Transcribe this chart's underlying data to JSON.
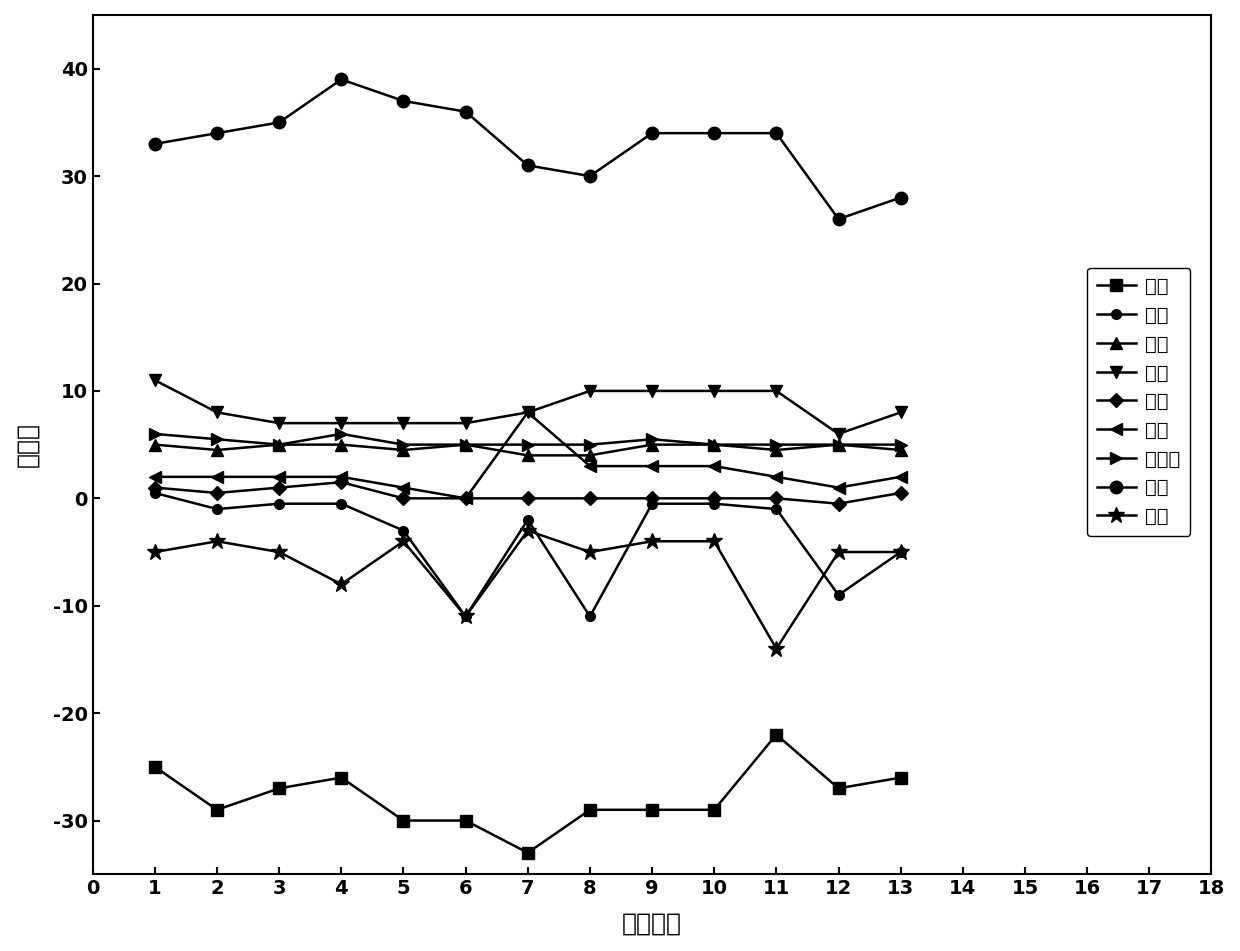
{
  "x": [
    1,
    2,
    3,
    4,
    5,
    6,
    7,
    8,
    9,
    10,
    11,
    12,
    13
  ],
  "refined_data": {
    "酸味": [
      -25,
      -29,
      -27,
      -26,
      -30,
      -30,
      -33,
      -29,
      -29,
      -29,
      -22,
      -27,
      -26
    ],
    "苦味": [
      0.5,
      -1,
      -0.5,
      -0.5,
      -3,
      -11,
      -2,
      -11,
      -0.5,
      -0.5,
      -1,
      -9,
      -5
    ],
    "涩味": [
      5,
      4.5,
      5,
      5,
      4.5,
      5,
      4,
      4,
      5,
      5,
      4.5,
      5,
      4.5
    ],
    "苦回": [
      11,
      8,
      7,
      7,
      7,
      7,
      8,
      10,
      10,
      10,
      10,
      6,
      8
    ],
    "涩回": [
      1,
      0.5,
      1,
      1.5,
      0,
      0,
      0,
      0,
      0,
      0,
      0,
      -0.5,
      0.5
    ],
    "鲜味": [
      2,
      2,
      2,
      2,
      1,
      0,
      8,
      3,
      3,
      3,
      2,
      1,
      2
    ],
    "丰富度": [
      6,
      5.5,
      5,
      6,
      5,
      5,
      5,
      5,
      5.5,
      5,
      5,
      5,
      5
    ],
    "咏味": [
      33,
      34,
      35,
      39,
      37,
      36,
      31,
      30,
      34,
      34,
      34,
      26,
      28
    ],
    "甜味": [
      -5,
      -4,
      -5,
      -8,
      -4,
      -11,
      -3,
      -5,
      -4,
      -4,
      -14,
      -5,
      -5
    ]
  },
  "series_order": [
    "酸味",
    "苦味",
    "涩味",
    "苦回",
    "涩回",
    "鲜味",
    "丰富度",
    "咏味",
    "甜味"
  ],
  "xlabel": "产品编号",
  "ylabel": "味觉値",
  "xlim": [
    0,
    18
  ],
  "ylim": [
    -35,
    45
  ],
  "xticks": [
    0,
    1,
    2,
    3,
    4,
    5,
    6,
    7,
    8,
    9,
    10,
    11,
    12,
    13,
    14,
    15,
    16,
    17,
    18
  ],
  "yticks": [
    -30,
    -20,
    -10,
    0,
    10,
    20,
    30,
    40
  ],
  "background_color": "#ffffff"
}
